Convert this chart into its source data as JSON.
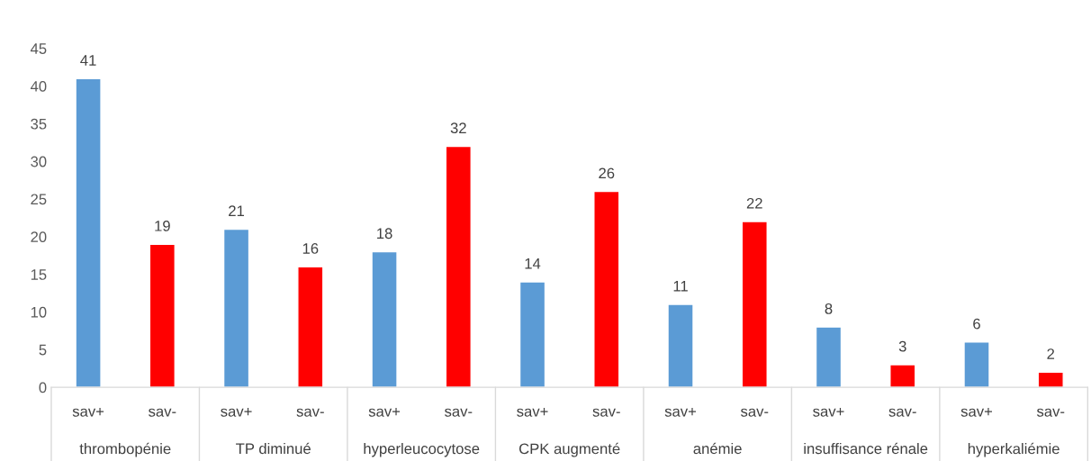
{
  "chart_data": {
    "type": "bar",
    "categories": [
      "thrombopénie",
      "TP diminué",
      "hyperleucocytose",
      "CPK augmenté",
      "anémie",
      "insuffisance rénale",
      "hyperkaliémie"
    ],
    "series": [
      {
        "name": "sav+",
        "color": "#5b9bd5",
        "values": [
          41,
          21,
          18,
          14,
          11,
          8,
          6
        ]
      },
      {
        "name": "sav-",
        "color": "#ff0000",
        "values": [
          19,
          16,
          32,
          26,
          22,
          3,
          2
        ]
      }
    ],
    "ylim": [
      0,
      45
    ],
    "yticks": [
      0,
      5,
      10,
      15,
      20,
      25,
      30,
      35,
      40,
      45
    ],
    "grid": false,
    "legend": false,
    "data_labels": true
  }
}
